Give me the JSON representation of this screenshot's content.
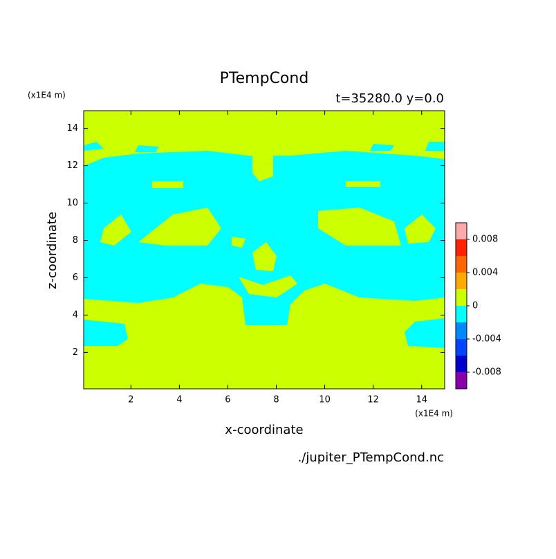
{
  "chart_data": {
    "type": "contour",
    "title": "PTempCond",
    "subtitle": "t=35280.0 y=0.0",
    "x_label": "x-coordinate",
    "y_label": "z-coordinate",
    "x_unit": "(x1E4 m)",
    "y_unit": "(x1E4 m)",
    "source": "./jupiter_PTempCond.nc",
    "xlim": [
      0.05,
      14.95
    ],
    "xticks": [
      2,
      4,
      6,
      8,
      10,
      12,
      14
    ],
    "ylim": [
      0.05,
      14.95
    ],
    "yticks": [
      2,
      4,
      6,
      8,
      10,
      12,
      14
    ],
    "levels": [
      -0.01,
      -0.008,
      -0.006,
      -0.004,
      -0.002,
      0,
      0.002,
      0.004,
      0.006,
      0.008,
      0.01
    ],
    "level_colors": [
      "#8800aa",
      "#0000cc",
      "#0044ff",
      "#0088ff",
      "#00ffff",
      "#ccff00",
      "#ffaa00",
      "#ff6600",
      "#ff2200",
      "#ffaaaa"
    ],
    "colorbar_ticks": [
      -0.008,
      -0.004,
      0,
      0.004,
      0.008
    ]
  }
}
